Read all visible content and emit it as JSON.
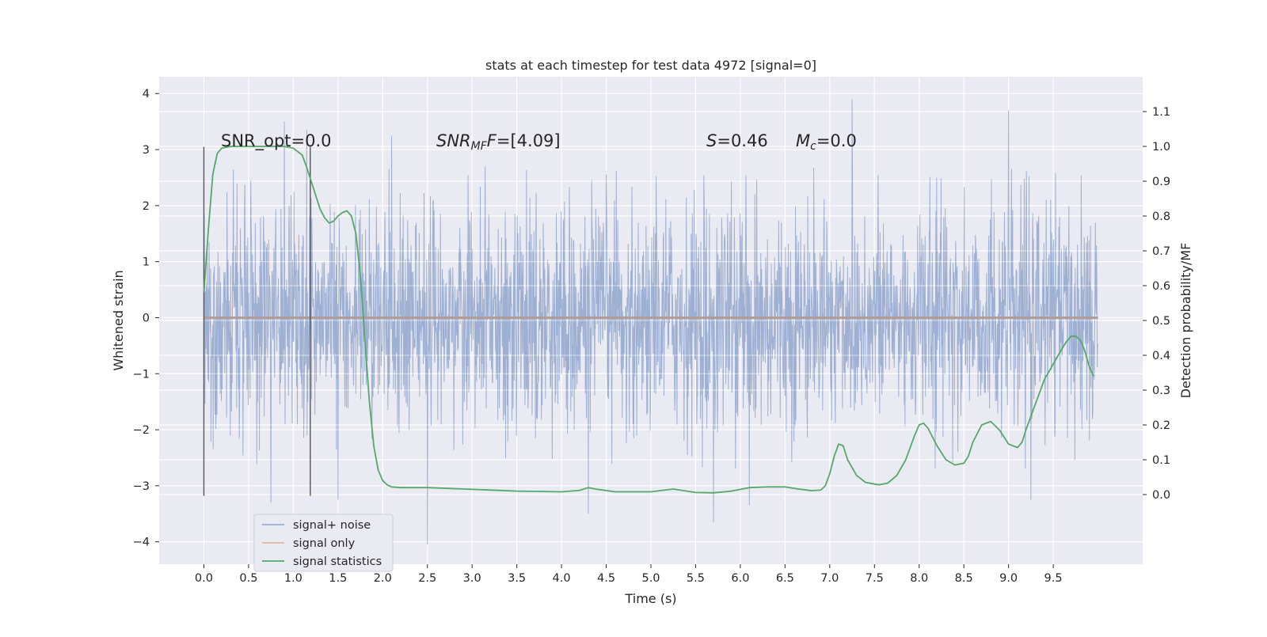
{
  "chart_data": {
    "type": "line",
    "title": "stats at each timestep for test data 4972 [signal=0]",
    "xlabel": "Time (s)",
    "ylabel_left": "Whitened strain",
    "ylabel_right": "Detection probability/MF",
    "xlim": [
      -0.5,
      10.5
    ],
    "ylim_left": [
      -4.4,
      4.3
    ],
    "ylim_right": [
      -0.2,
      1.2
    ],
    "grid": true,
    "x_ticks": [
      0.0,
      0.5,
      1.0,
      1.5,
      2.0,
      2.5,
      3.0,
      3.5,
      4.0,
      4.5,
      5.0,
      5.5,
      6.0,
      6.5,
      7.0,
      7.5,
      8.0,
      8.5,
      9.0,
      9.5
    ],
    "x_tick_labels": [
      "0.0",
      "0.5",
      "1.0",
      "1.5",
      "2.0",
      "2.5",
      "3.0",
      "3.5",
      "4.0",
      "4.5",
      "5.0",
      "5.5",
      "6.0",
      "6.5",
      "7.0",
      "7.5",
      "8.0",
      "8.5",
      "9.0",
      "9.5"
    ],
    "y_left_ticks": [
      -4,
      -3,
      -2,
      -1,
      0,
      1,
      2,
      3,
      4
    ],
    "y_left_tick_labels": [
      "−4",
      "−3",
      "−2",
      "−1",
      "0",
      "1",
      "2",
      "3",
      "4"
    ],
    "y_right_ticks": [
      0.0,
      0.1,
      0.2,
      0.3,
      0.4,
      0.5,
      0.6,
      0.7,
      0.8,
      0.9,
      1.0,
      1.1
    ],
    "y_right_tick_labels": [
      "0.0",
      "0.1",
      "0.2",
      "0.3",
      "0.4",
      "0.5",
      "0.6",
      "0.7",
      "0.8",
      "0.9",
      "1.0",
      "1.1"
    ],
    "annotations": {
      "snr_opt": "SNR_opt=0.0",
      "snr_mf_base": "SNR",
      "snr_mf_sub": "MF",
      "snr_mf_value": "=[4.09]",
      "s_symbol": "S",
      "s_value": "=0.46",
      "mc_base": "M",
      "mc_sub": "c",
      "mc_value": "=0.0"
    },
    "vertical_lines_x": [
      0.0,
      1.19
    ],
    "vertical_lines_y_range": [
      -3.18,
      3.05
    ],
    "legend": {
      "placement": "lower-left",
      "entries": [
        "signal+ noise",
        "signal only",
        "signal statistics"
      ]
    },
    "series": [
      {
        "name": "signal+ noise",
        "color": "#8fa5cc",
        "axis": "left",
        "x_range": [
          0.0,
          10.0
        ],
        "typical_amplitude": 1.3,
        "peak_extremes": [
          {
            "x": 0.9,
            "y": 3.5
          },
          {
            "x": 1.15,
            "y": 3.35
          },
          {
            "x": 0.75,
            "y": -3.3
          },
          {
            "x": 1.5,
            "y": -3.25
          },
          {
            "x": 2.1,
            "y": 3.25
          },
          {
            "x": 2.5,
            "y": -4.05
          },
          {
            "x": 4.3,
            "y": -3.5
          },
          {
            "x": 5.7,
            "y": -3.65
          },
          {
            "x": 6.1,
            "y": -3.35
          },
          {
            "x": 7.25,
            "y": 3.9
          },
          {
            "x": 9.0,
            "y": 3.7
          },
          {
            "x": 9.25,
            "y": -3.25
          }
        ]
      },
      {
        "name": "signal only",
        "color": "#dd8452",
        "axis": "left",
        "x": [
          0.0,
          10.0
        ],
        "y": [
          0.0,
          0.0
        ]
      },
      {
        "name": "signal statistics",
        "color": "#55a868",
        "axis": "right",
        "x": [
          0.0,
          0.05,
          0.1,
          0.15,
          0.2,
          0.3,
          0.5,
          0.7,
          0.9,
          1.0,
          1.1,
          1.15,
          1.2,
          1.25,
          1.3,
          1.35,
          1.4,
          1.45,
          1.5,
          1.55,
          1.6,
          1.65,
          1.7,
          1.75,
          1.8,
          1.85,
          1.9,
          1.95,
          2.0,
          2.05,
          2.1,
          2.2,
          2.5,
          3.0,
          3.5,
          4.0,
          4.2,
          4.3,
          4.4,
          4.6,
          5.0,
          5.25,
          5.5,
          5.7,
          5.9,
          6.1,
          6.3,
          6.5,
          6.65,
          6.8,
          6.9,
          6.95,
          7.0,
          7.05,
          7.1,
          7.15,
          7.2,
          7.3,
          7.4,
          7.55,
          7.65,
          7.75,
          7.85,
          7.95,
          8.0,
          8.05,
          8.1,
          8.2,
          8.3,
          8.4,
          8.5,
          8.55,
          8.6,
          8.7,
          8.8,
          8.9,
          9.0,
          9.1,
          9.15,
          9.2,
          9.3,
          9.4,
          9.5,
          9.6,
          9.65,
          9.7,
          9.75,
          9.8,
          9.85,
          9.9,
          9.95
        ],
        "y": [
          0.58,
          0.76,
          0.92,
          0.98,
          0.995,
          1.0,
          1.0,
          1.0,
          1.0,
          0.995,
          0.975,
          0.94,
          0.9,
          0.86,
          0.82,
          0.795,
          0.78,
          0.785,
          0.8,
          0.81,
          0.815,
          0.8,
          0.75,
          0.63,
          0.45,
          0.27,
          0.14,
          0.07,
          0.04,
          0.028,
          0.022,
          0.02,
          0.02,
          0.015,
          0.01,
          0.008,
          0.012,
          0.02,
          0.015,
          0.008,
          0.008,
          0.016,
          0.006,
          0.005,
          0.01,
          0.02,
          0.022,
          0.022,
          0.016,
          0.011,
          0.013,
          0.025,
          0.06,
          0.11,
          0.145,
          0.14,
          0.1,
          0.055,
          0.035,
          0.028,
          0.033,
          0.055,
          0.1,
          0.17,
          0.2,
          0.205,
          0.19,
          0.14,
          0.1,
          0.085,
          0.09,
          0.11,
          0.15,
          0.2,
          0.21,
          0.185,
          0.145,
          0.135,
          0.15,
          0.19,
          0.26,
          0.33,
          0.375,
          0.42,
          0.44,
          0.455,
          0.455,
          0.445,
          0.415,
          0.37,
          0.34
        ]
      }
    ]
  }
}
